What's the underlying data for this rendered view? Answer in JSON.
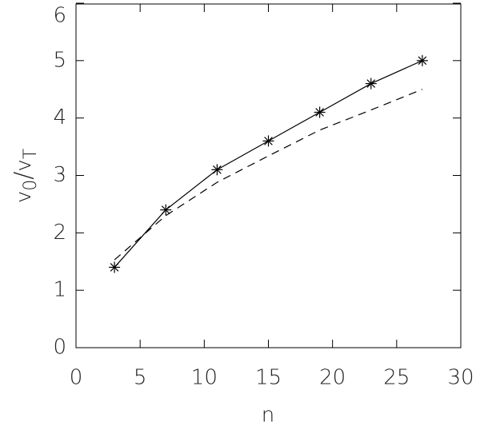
{
  "chart_data": {
    "type": "line",
    "xlabel": "n",
    "ylabel": [
      "v",
      "0",
      "/",
      "v",
      "T"
    ],
    "x": [
      3,
      7,
      11,
      15,
      19,
      23,
      27
    ],
    "series": [
      {
        "color": "#000000",
        "line": "solid",
        "marker": "asterisk",
        "values": [
          1.4,
          2.4,
          3.1,
          3.6,
          4.1,
          4.6,
          5.0
        ]
      },
      {
        "color": "#000000",
        "line": "dashed",
        "marker": "none",
        "values": [
          1.53,
          2.3,
          2.88,
          3.34,
          3.79,
          4.14,
          4.5
        ]
      }
    ],
    "xlim": [
      0,
      30
    ],
    "xticks": [
      0,
      5,
      10,
      15,
      20,
      25,
      30
    ],
    "ylim": [
      0,
      6
    ],
    "yticks": [
      0,
      1,
      2,
      3,
      4,
      5,
      6
    ]
  }
}
